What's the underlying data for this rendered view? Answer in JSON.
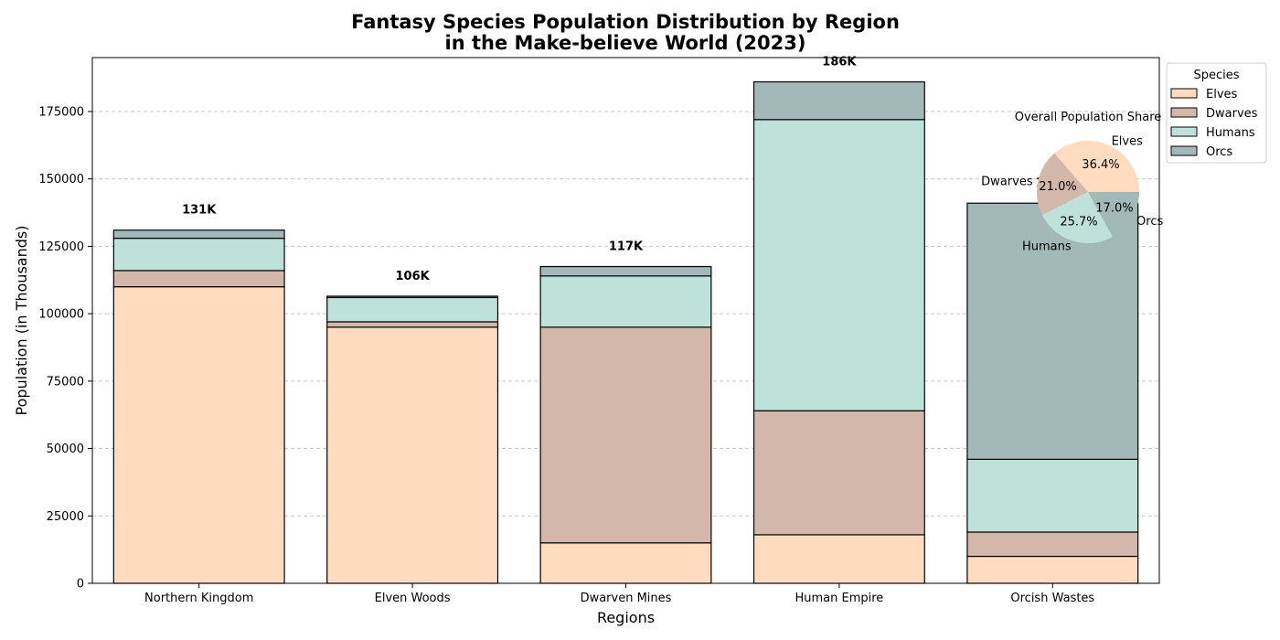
{
  "chart_data": [
    {
      "type": "bar",
      "stacked": true,
      "title": "Fantasy Species Population Distribution by Region\nin the Make-believe World (2023)",
      "xlabel": "Regions",
      "ylabel": "Population (in Thousands)",
      "categories": [
        "Northern Kingdom",
        "Elven Woods",
        "Dwarven Mines",
        "Human Empire",
        "Orcish Wastes"
      ],
      "series": [
        {
          "name": "Elves",
          "values": [
            110000,
            95000,
            15000,
            18000,
            10000
          ],
          "color": "#ffdcc0"
        },
        {
          "name": "Dwarves",
          "values": [
            6000,
            2000,
            80000,
            46000,
            9000
          ],
          "color": "#d3b7ab"
        },
        {
          "name": "Humans",
          "values": [
            12000,
            9000,
            19000,
            108000,
            27000
          ],
          "color": "#bee2d9"
        },
        {
          "name": "Orcs",
          "values": [
            3000,
            500,
            3500,
            14000,
            95000
          ],
          "color": "#a3b9b9"
        }
      ],
      "totals_labels": [
        "131K",
        "106K",
        "117K",
        "186K",
        "141K"
      ],
      "ylim": [
        0,
        195000
      ],
      "yticks": [
        0,
        25000,
        50000,
        75000,
        100000,
        125000,
        150000,
        175000
      ],
      "grid": "y-dashed",
      "legend": {
        "title": "Species",
        "placement": "outside-top-right",
        "entries": [
          "Elves",
          "Dwarves",
          "Humans",
          "Orcs"
        ]
      }
    },
    {
      "type": "pie",
      "title": "Overall Population Share",
      "labels": [
        "Elves",
        "Dwarves",
        "Humans",
        "Orcs"
      ],
      "values": [
        36.4,
        21.0,
        25.7,
        17.0
      ],
      "pct_labels": [
        "36.4%",
        "21.0%",
        "25.7%",
        "17.0%"
      ],
      "colors": [
        "#ffdcc0",
        "#d3b7ab",
        "#bee2d9",
        "#a3b9b9"
      ]
    }
  ]
}
